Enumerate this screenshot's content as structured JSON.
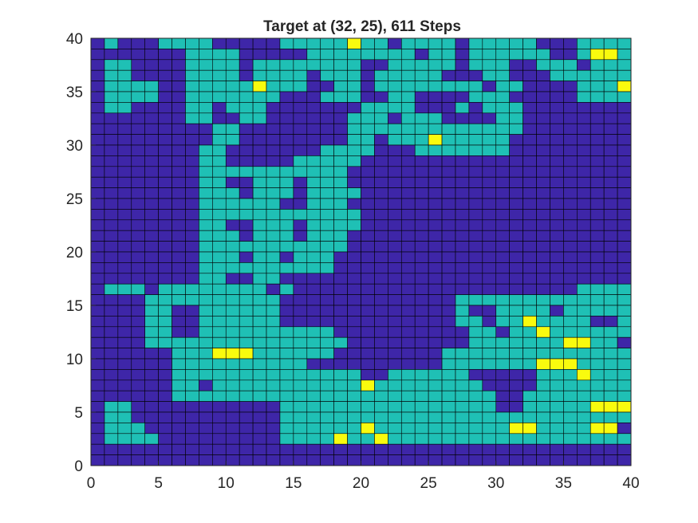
{
  "chart_data": {
    "type": "heatmap",
    "title": "Target at (32, 25), 611 Steps",
    "xlabel": "",
    "ylabel": "",
    "xlim": [
      0,
      40
    ],
    "ylim": [
      0,
      40
    ],
    "x_ticks": [
      "0",
      "5",
      "10",
      "15",
      "20",
      "25",
      "30",
      "35",
      "40"
    ],
    "y_ticks": [
      "0",
      "5",
      "10",
      "15",
      "20",
      "25",
      "30",
      "35",
      "40"
    ],
    "grid": true,
    "colors": {
      "background": "#3e26a8",
      "visited": "#1fc0b5",
      "highlight": "#f9fb0e",
      "cell_edge": "#000000",
      "axis": "#262626"
    },
    "rows_top_to_bottom": [
      ".V...VVVV.....VVVVVHVV.VVVV.VVVVV...VVVV",
      ".......VVVV.....VVVVVVVV.VV.VVVVVV..VHHV",
      ".VV....VVVV.VVVVVVVV..VVVVV.VVV..VVV.VVV",
      ".VV....VVVV.VVVV.VVV.VVVVV...VV...VVVVVV",
      ".VVVV..VVVVVHVVV..VV.VVVVVVVV.VV....VVVH",
      ".VVVV..VVVVVVV...VVV..VV....VVV.....VVVV",
      ".VV....VV.VVV.......VVVV...V.VVV........",
      ".......VV..VV......VVV.VVV....VV........",
      ".........VV........VVVVVVVVVVVVV........",
      ".........VV........VV.VVVHVVVVV.........",
      "........VV.......VVVV...VVVVVVV.........",
      "........VV.....VVVVV....................",
      "................VVVV....................",
      ".................VVV....................",
      ".................VVV....................",
      "..................VV....................",
      "...............................V........"
    ],
    "rows_detail": [
      {
        "y": 39,
        "row": ".V...VVVV.....VVVVVHVV.VVVV.VVVVV...VVVV"
      },
      {
        "y": 38,
        "row": ".......VVVV.....VVVVVVVV.VV.VVVVVV..VHHV"
      },
      {
        "y": 37,
        "row": ".VV....VVVV.VVVVVVVV..VVVVV.VVV..VVV.VVV"
      },
      {
        "y": 36,
        "row": ".VV....VVVV.VVVV.VVV.VVVVV...VV...VVVVVV"
      },
      {
        "y": 35,
        "row": ".VVVV..VVVVVHVVV..VV.VVVVVVVV.VV....VVVH"
      },
      {
        "y": 34,
        "row": ".VVVV..VVVVVVV...VVV..VV....VVV.....VVVV"
      },
      {
        "y": 33,
        "row": ".VV....VV.VVV.......VVVV...V.VVV........"
      },
      {
        "y": 32,
        "row": ".......VV..VV......VVV.VVV....VV........"
      },
      {
        "y": 31,
        "row": ".........VV........VVVVVVVVVVVVV........"
      },
      {
        "y": 30,
        "row": ".........VV........VV.VVVHVVVVV........."
      },
      {
        "y": 29,
        "row": "........VV.......VVVV...VVVVVVV........."
      },
      {
        "y": 28,
        "row": "........VV.....VVVVV...................."
      },
      {
        "y": 27,
        "row": "................VVVV...................."
      },
      {
        "y": 26,
        "row": ".................VVV...................."
      },
      {
        "y": 25,
        "row": ".................VVV...................."
      },
      {
        "y": 24,
        "row": "..................VV...................."
      },
      {
        "y": 23,
        "row": "...............................V........"
      }
    ]
  }
}
